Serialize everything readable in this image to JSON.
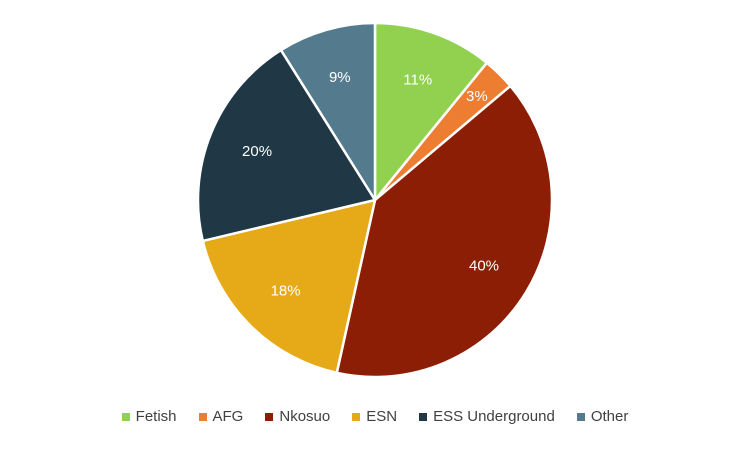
{
  "chart_data": {
    "type": "pie",
    "title": "",
    "start_angle_deg": 0,
    "direction": "clockwise",
    "legend_position": "bottom",
    "slices": [
      {
        "name": "Fetish",
        "value": 11,
        "label": "11%",
        "color": "#92d050"
      },
      {
        "name": "AFG",
        "value": 3,
        "label": "3%",
        "color": "#ed7d31"
      },
      {
        "name": "Nkosuo",
        "value": 40,
        "label": "40%",
        "color": "#8b1e04"
      },
      {
        "name": "ESN",
        "value": 18,
        "label": "18%",
        "color": "#e6a918"
      },
      {
        "name": "ESS Underground",
        "value": 20,
        "label": "20%",
        "color": "#203745"
      },
      {
        "name": "Other",
        "value": 9,
        "label": "9%",
        "color": "#547a8e"
      }
    ]
  }
}
